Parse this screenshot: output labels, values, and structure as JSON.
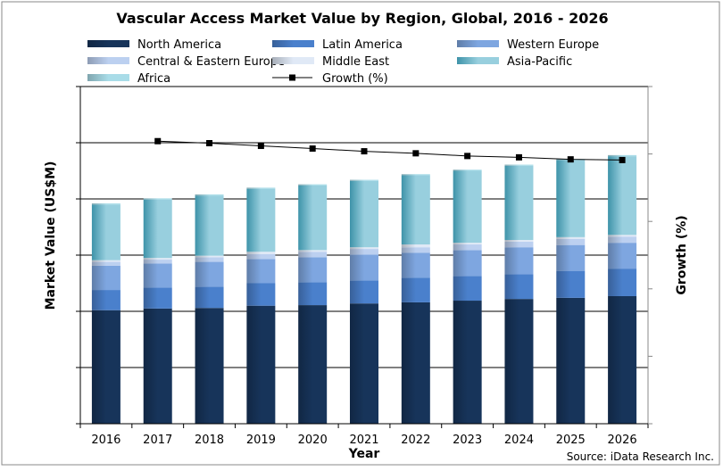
{
  "chart_data": {
    "type": "bar",
    "stacked": true,
    "title": "Vascular Access Market Value by Region, Global, 2016 - 2026",
    "xlabel": "Year",
    "ylabel": "Market Value (US$M)",
    "y2label": "Growth (%)",
    "source": "Source: iData Research Inc.",
    "note": "Axis tick values are not printed; values are given in units of the left-axis gridline spacing (left) and right-axis tick spacing (right).",
    "ylim": [
      0,
      6
    ],
    "y2lim": [
      0,
      5
    ],
    "grid": true,
    "legend_position": "top",
    "categories": [
      "2016",
      "2017",
      "2018",
      "2019",
      "2020",
      "2021",
      "2022",
      "2023",
      "2024",
      "2025",
      "2026"
    ],
    "series": [
      {
        "name": "North America",
        "color": "#17345a",
        "values": [
          2.02,
          2.05,
          2.06,
          2.1,
          2.11,
          2.14,
          2.16,
          2.19,
          2.22,
          2.24,
          2.27
        ]
      },
      {
        "name": "Latin America",
        "color": "#4a80cc",
        "values": [
          0.36,
          0.37,
          0.38,
          0.4,
          0.41,
          0.41,
          0.44,
          0.44,
          0.44,
          0.48,
          0.49
        ]
      },
      {
        "name": "Western Europe",
        "color": "#7ea6e0",
        "values": [
          0.43,
          0.43,
          0.44,
          0.43,
          0.44,
          0.46,
          0.44,
          0.46,
          0.48,
          0.46,
          0.46
        ]
      },
      {
        "name": "Central & Eastern Europe",
        "color": "#bcd0f0",
        "values": [
          0.07,
          0.07,
          0.08,
          0.09,
          0.1,
          0.1,
          0.1,
          0.1,
          0.1,
          0.11,
          0.11
        ]
      },
      {
        "name": "Middle East",
        "color": "#e0e9f6",
        "values": [
          0.03,
          0.03,
          0.03,
          0.04,
          0.03,
          0.03,
          0.05,
          0.03,
          0.03,
          0.03,
          0.03
        ]
      },
      {
        "name": "Asia-Pacific",
        "color": "#3e93a9",
        "color2": "#98cfde",
        "values": [
          0.99,
          1.04,
          1.07,
          1.12,
          1.15,
          1.18,
          1.23,
          1.28,
          1.32,
          1.37,
          1.4
        ]
      },
      {
        "name": "Africa",
        "color": "#a9dce8",
        "values": [
          0.02,
          0.02,
          0.02,
          0.02,
          0.02,
          0.02,
          0.02,
          0.02,
          0.02,
          0.02,
          0.02
        ]
      }
    ],
    "line_series": {
      "name": "Growth (%)",
      "color": "#000000",
      "axis": "right",
      "values": [
        null,
        4.19,
        4.16,
        4.12,
        4.08,
        4.04,
        4.01,
        3.97,
        3.95,
        3.92,
        3.91
      ]
    }
  }
}
